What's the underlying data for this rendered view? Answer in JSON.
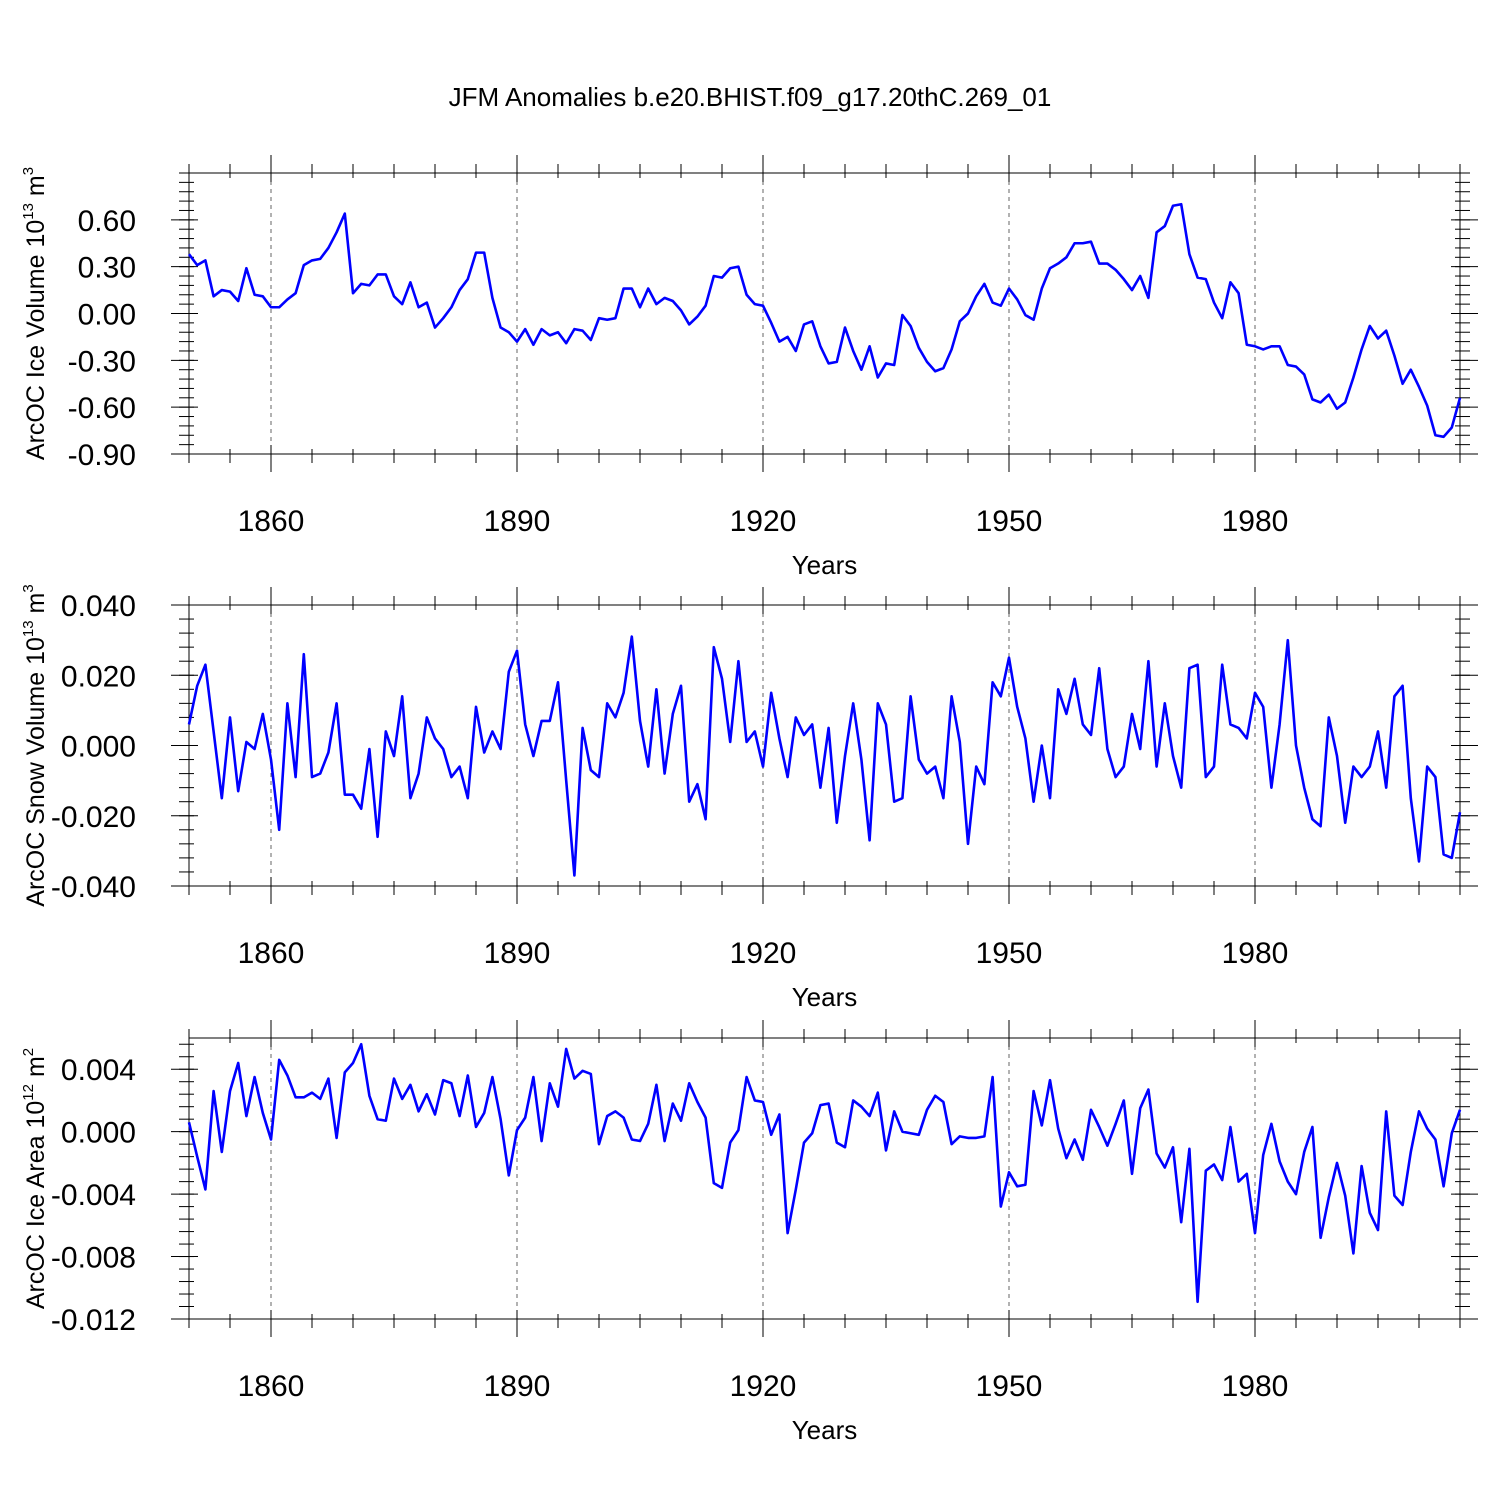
{
  "chart_data": {
    "type": "line",
    "title": "JFM Anomalies b.e20.BHIST.f09_g17.20thC.269_01",
    "line_color": "#0000ff",
    "grid_color": "#666666",
    "x_range": [
      1850,
      2005
    ],
    "x_ticks": [
      1860,
      1890,
      1920,
      1950,
      1980
    ],
    "x_tick_labels": [
      "1860",
      "1890",
      "1920",
      "1950",
      "1980"
    ],
    "panels": [
      {
        "ylabel_main": "ArcOC Ice Volume 10",
        "ylabel_exp": "13",
        "ylabel_unit": " m",
        "ylabel_unit_exp": "3",
        "xlabel": "Years",
        "ylim": [
          -0.9,
          0.9
        ],
        "y_ticks": [
          0.6,
          0.3,
          0.0,
          -0.3,
          -0.6,
          -0.9
        ],
        "y_tick_labels": [
          "0.60",
          "0.30",
          "0.00",
          "-0.30",
          "-0.60",
          "-0.90"
        ],
        "y_minor_step": 0.06,
        "values": [
          0.38,
          0.31,
          0.34,
          0.11,
          0.15,
          0.14,
          0.08,
          0.29,
          0.12,
          0.11,
          0.04,
          0.04,
          0.09,
          0.13,
          0.31,
          0.34,
          0.35,
          0.42,
          0.52,
          0.64,
          0.13,
          0.19,
          0.18,
          0.25,
          0.25,
          0.11,
          0.06,
          0.2,
          0.04,
          0.07,
          -0.09,
          -0.03,
          0.04,
          0.15,
          0.22,
          0.39,
          0.39,
          0.1,
          -0.09,
          -0.12,
          -0.18,
          -0.1,
          -0.2,
          -0.1,
          -0.14,
          -0.12,
          -0.19,
          -0.1,
          -0.11,
          -0.17,
          -0.03,
          -0.04,
          -0.03,
          0.16,
          0.16,
          0.04,
          0.16,
          0.06,
          0.1,
          0.08,
          0.02,
          -0.07,
          -0.02,
          0.05,
          0.24,
          0.23,
          0.29,
          0.3,
          0.12,
          0.06,
          0.05,
          -0.06,
          -0.18,
          -0.15,
          -0.24,
          -0.07,
          -0.05,
          -0.21,
          -0.32,
          -0.31,
          -0.09,
          -0.24,
          -0.36,
          -0.21,
          -0.41,
          -0.32,
          -0.33,
          -0.01,
          -0.08,
          -0.22,
          -0.31,
          -0.37,
          -0.35,
          -0.23,
          -0.05,
          0.0,
          0.11,
          0.19,
          0.07,
          0.05,
          0.16,
          0.09,
          -0.01,
          -0.04,
          0.16,
          0.29,
          0.32,
          0.36,
          0.45,
          0.45,
          0.46,
          0.32,
          0.32,
          0.28,
          0.22,
          0.15,
          0.24,
          0.1,
          0.52,
          0.56,
          0.69,
          0.7,
          0.38,
          0.23,
          0.22,
          0.07,
          -0.03,
          0.2,
          0.13,
          -0.2,
          -0.21,
          -0.23,
          -0.21,
          -0.21,
          -0.33,
          -0.34,
          -0.39,
          -0.55,
          -0.57,
          -0.52,
          -0.61,
          -0.57,
          -0.41,
          -0.23,
          -0.08,
          -0.16,
          -0.11,
          -0.27,
          -0.45,
          -0.36,
          -0.47,
          -0.59,
          -0.78,
          -0.79,
          -0.73,
          -0.54
        ]
      },
      {
        "ylabel_main": "ArcOC Snow Volume 10",
        "ylabel_exp": "13",
        "ylabel_unit": " m",
        "ylabel_unit_exp": "3",
        "xlabel": "Years",
        "ylim": [
          -0.04,
          0.04
        ],
        "y_ticks": [
          0.04,
          0.02,
          0.0,
          -0.02,
          -0.04
        ],
        "y_tick_labels": [
          "0.040",
          "0.020",
          "0.000",
          "-0.020",
          "-0.040"
        ],
        "y_minor_step": 0.004,
        "values": [
          0.006,
          0.017,
          0.023,
          0.004,
          -0.015,
          0.008,
          -0.013,
          0.001,
          -0.001,
          0.009,
          -0.004,
          -0.024,
          0.012,
          -0.009,
          0.026,
          -0.009,
          -0.008,
          -0.002,
          0.012,
          -0.014,
          -0.014,
          -0.018,
          -0.001,
          -0.026,
          0.004,
          -0.003,
          0.014,
          -0.015,
          -0.008,
          0.008,
          0.002,
          -0.001,
          -0.009,
          -0.006,
          -0.015,
          0.011,
          -0.002,
          0.004,
          -0.001,
          0.021,
          0.027,
          0.006,
          -0.003,
          0.007,
          0.007,
          0.018,
          -0.01,
          -0.037,
          0.005,
          -0.007,
          -0.009,
          0.012,
          0.008,
          0.015,
          0.031,
          0.007,
          -0.006,
          0.016,
          -0.008,
          0.009,
          0.017,
          -0.016,
          -0.011,
          -0.021,
          0.028,
          0.019,
          0.001,
          0.024,
          0.001,
          0.004,
          -0.006,
          0.015,
          0.002,
          -0.009,
          0.008,
          0.003,
          0.006,
          -0.012,
          0.005,
          -0.022,
          -0.003,
          0.012,
          -0.004,
          -0.027,
          0.012,
          0.006,
          -0.016,
          -0.015,
          0.014,
          -0.004,
          -0.008,
          -0.006,
          -0.015,
          0.014,
          0.001,
          -0.028,
          -0.006,
          -0.011,
          0.018,
          0.014,
          0.025,
          0.011,
          0.002,
          -0.016,
          0.0,
          -0.015,
          0.016,
          0.009,
          0.019,
          0.006,
          0.003,
          0.022,
          -0.001,
          -0.009,
          -0.006,
          0.009,
          -0.001,
          0.024,
          -0.006,
          0.012,
          -0.003,
          -0.012,
          0.022,
          0.023,
          -0.009,
          -0.006,
          0.023,
          0.006,
          0.005,
          0.002,
          0.015,
          0.011,
          -0.012,
          0.006,
          0.03,
          0.0,
          -0.012,
          -0.021,
          -0.023,
          0.008,
          -0.003,
          -0.022,
          -0.006,
          -0.009,
          -0.006,
          0.004,
          -0.012,
          0.014,
          0.017,
          -0.015,
          -0.033,
          -0.006,
          -0.009,
          -0.031,
          -0.032,
          -0.019
        ]
      },
      {
        "ylabel_main": "ArcOC Ice Area 10",
        "ylabel_exp": "12",
        "ylabel_unit": " m",
        "ylabel_unit_exp": "2",
        "xlabel": "Years",
        "ylim": [
          -0.012,
          0.006
        ],
        "y_ticks": [
          0.004,
          0.0,
          -0.004,
          -0.008,
          -0.012
        ],
        "y_tick_labels": [
          "0.004",
          "0.000",
          "-0.004",
          "-0.008",
          "-0.012"
        ],
        "y_minor_step": 0.0008,
        "values": [
          0.0006,
          -0.0016,
          -0.0037,
          0.0026,
          -0.0013,
          0.0026,
          0.0044,
          0.001,
          0.0035,
          0.0012,
          -0.0005,
          0.0046,
          0.0036,
          0.0022,
          0.0022,
          0.0025,
          0.0021,
          0.0034,
          -0.0004,
          0.0038,
          0.0044,
          0.0056,
          0.0023,
          0.0008,
          0.0007,
          0.0034,
          0.0021,
          0.003,
          0.0013,
          0.0024,
          0.0011,
          0.0033,
          0.0031,
          0.001,
          0.0036,
          0.0003,
          0.0012,
          0.0035,
          0.0008,
          -0.0028,
          0.0001,
          0.0009,
          0.0035,
          -0.0006,
          0.0031,
          0.0016,
          0.0053,
          0.0034,
          0.0039,
          0.0037,
          -0.0008,
          0.001,
          0.0013,
          0.0009,
          -0.0005,
          -0.0006,
          0.0005,
          0.003,
          -0.0006,
          0.0018,
          0.0007,
          0.0031,
          0.0019,
          0.0009,
          -0.0033,
          -0.0036,
          -0.0007,
          0.0001,
          0.0035,
          0.002,
          0.0019,
          -0.0002,
          0.0011,
          -0.0065,
          -0.0037,
          -0.0007,
          -0.0001,
          0.0017,
          0.0018,
          -0.0007,
          -0.001,
          0.002,
          0.0016,
          0.001,
          0.0025,
          -0.0012,
          0.0013,
          0.0,
          -0.0001,
          -0.0002,
          0.0014,
          0.0023,
          0.0019,
          -0.0008,
          -0.0003,
          -0.0004,
          -0.0004,
          -0.0003,
          0.0035,
          -0.0048,
          -0.0026,
          -0.0035,
          -0.0034,
          0.0026,
          0.0004,
          0.0033,
          0.0002,
          -0.0017,
          -0.0005,
          -0.0018,
          0.0014,
          0.0003,
          -0.0009,
          0.0005,
          0.002,
          -0.0027,
          0.0015,
          0.0027,
          -0.0014,
          -0.0023,
          -0.001,
          -0.0058,
          -0.0011,
          -0.0109,
          -0.0025,
          -0.0021,
          -0.0031,
          0.0003,
          -0.0032,
          -0.0027,
          -0.0065,
          -0.0015,
          0.0005,
          -0.0019,
          -0.0032,
          -0.004,
          -0.0013,
          0.0003,
          -0.0068,
          -0.0042,
          -0.002,
          -0.0041,
          -0.0078,
          -0.0022,
          -0.0052,
          -0.0063,
          0.0013,
          -0.0041,
          -0.0047,
          -0.0013,
          0.0013,
          0.0002,
          -0.0005,
          -0.0035,
          -0.0001,
          0.0014
        ]
      }
    ]
  }
}
